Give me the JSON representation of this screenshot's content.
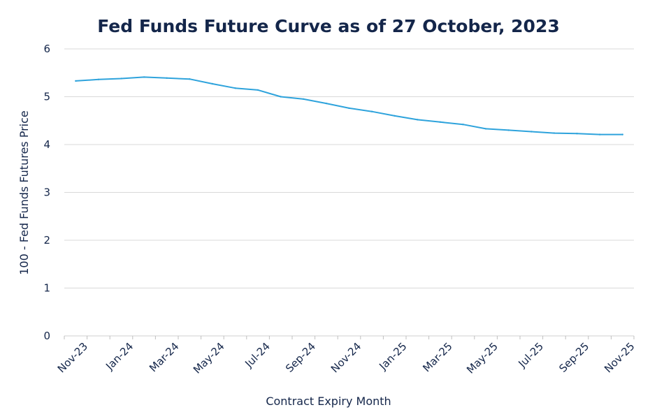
{
  "chart_data": {
    "type": "line",
    "title": "Fed Funds Future Curve as of 27 October, 2023",
    "xlabel": "Contract Expiry Month",
    "ylabel": "100 - Fed Funds Futures Price",
    "ylim": [
      0,
      6
    ],
    "yticks": [
      "0",
      "1",
      "2",
      "3",
      "4",
      "5",
      "6"
    ],
    "xticks": [
      "Nov-23",
      "Jan-24",
      "Mar-24",
      "May-24",
      "Jul-24",
      "Sep-24",
      "Nov-24",
      "Jan-25",
      "Mar-25",
      "May-25",
      "Jul-25",
      "Sep-25",
      "Nov-25"
    ],
    "grid": "horizontal",
    "legend": "none",
    "line_color": "#2ea3dc",
    "x": [
      "Nov-23",
      "Dec-23",
      "Jan-24",
      "Feb-24",
      "Mar-24",
      "Apr-24",
      "May-24",
      "Jun-24",
      "Jul-24",
      "Aug-24",
      "Sep-24",
      "Oct-24",
      "Nov-24",
      "Dec-24",
      "Jan-25",
      "Feb-25",
      "Mar-25",
      "Apr-25",
      "May-25",
      "Jun-25",
      "Jul-25",
      "Aug-25",
      "Sep-25",
      "Oct-25",
      "Nov-25"
    ],
    "series": [
      {
        "values": [
          5.33,
          5.36,
          5.38,
          5.41,
          5.39,
          5.37,
          5.27,
          5.18,
          5.14,
          5.0,
          4.95,
          4.86,
          4.76,
          4.69,
          4.6,
          4.52,
          4.47,
          4.42,
          4.33,
          4.3,
          4.27,
          4.24,
          4.23,
          4.21,
          4.21
        ]
      }
    ]
  }
}
